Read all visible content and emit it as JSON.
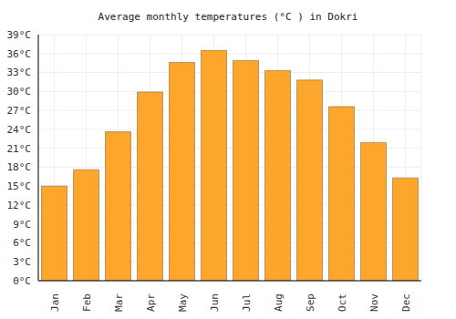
{
  "chart_data": {
    "type": "bar",
    "title": "Average monthly temperatures (°C ) in Dokri",
    "categories": [
      "Jan",
      "Feb",
      "Mar",
      "Apr",
      "May",
      "Jun",
      "Jul",
      "Aug",
      "Sep",
      "Oct",
      "Nov",
      "Dec"
    ],
    "values": [
      15,
      17.6,
      23.6,
      29.9,
      34.6,
      36.5,
      34.9,
      33.3,
      31.8,
      27.6,
      21.9,
      16.3
    ],
    "color": "#fca62c",
    "ylim": [
      0,
      39
    ],
    "yticks": [
      {
        "value": 0,
        "label": "0°C"
      },
      {
        "value": 3,
        "label": "3°C"
      },
      {
        "value": 6,
        "label": "6°C"
      },
      {
        "value": 9,
        "label": "9°C"
      },
      {
        "value": 12,
        "label": "12°C"
      },
      {
        "value": 15,
        "label": "15°C"
      },
      {
        "value": 18,
        "label": "18°C"
      },
      {
        "value": 21,
        "label": "21°C"
      },
      {
        "value": 24,
        "label": "24°C"
      },
      {
        "value": 27,
        "label": "27°C"
      },
      {
        "value": 30,
        "label": "30°C"
      },
      {
        "value": 33,
        "label": "33°C"
      },
      {
        "value": 36,
        "label": "36°C"
      },
      {
        "value": 39,
        "label": "39°C"
      }
    ],
    "grid": true
  }
}
